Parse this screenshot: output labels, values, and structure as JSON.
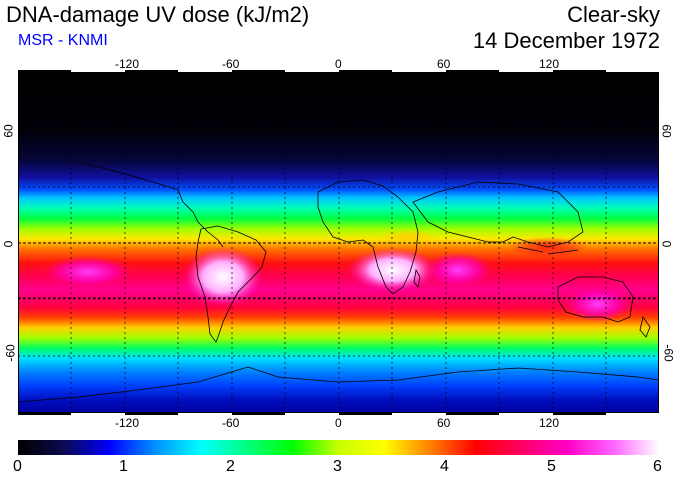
{
  "header": {
    "title": "DNA-damage UV dose (kJ/m2)",
    "subtitle": "MSR - KNMI",
    "sky_condition": "Clear-sky",
    "date": "14 December 1972"
  },
  "axes": {
    "lon_ticks": [
      "-120",
      "-60",
      "0",
      "60",
      "120"
    ],
    "lat_ticks": [
      "60",
      "0",
      "-60"
    ]
  },
  "colorbar": {
    "labels": [
      "0",
      "1",
      "2",
      "3",
      "4",
      "5",
      "6"
    ],
    "min": 0,
    "max": 6,
    "unit": "kJ/m2"
  },
  "colors": {
    "subtitle": "#0000ff",
    "scale": [
      "#000000",
      "#0a0a50",
      "#0000ff",
      "#0090ff",
      "#00ffff",
      "#00ff80",
      "#00ff00",
      "#c8ff00",
      "#ffff00",
      "#ff8000",
      "#ff0000",
      "#ff0064",
      "#ff00c8",
      "#ff64ff",
      "#ffffff"
    ]
  }
}
